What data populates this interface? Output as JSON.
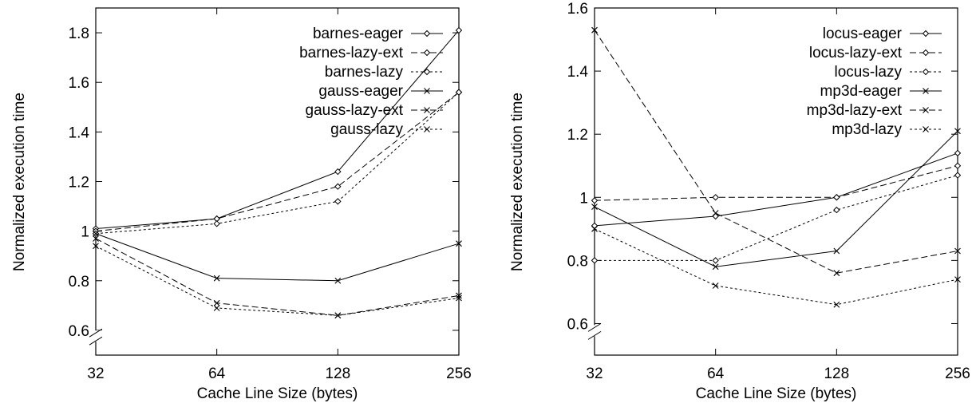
{
  "figure": {
    "background": "#ffffff"
  },
  "chart_data": [
    {
      "type": "line",
      "xlabel": "Cache Line Size (bytes)",
      "ylabel": "Normalized execution time",
      "x_scale": "log2",
      "categories": [
        "32",
        "64",
        "128",
        "256"
      ],
      "x": [
        32,
        64,
        128,
        256
      ],
      "xlim": [
        32,
        256
      ],
      "ylim": [
        0.5,
        1.9
      ],
      "yticks": [
        "0.6",
        "0.8",
        "1",
        "1.2",
        "1.4",
        "1.6",
        "1.8"
      ],
      "ytick_values": [
        0.6,
        0.8,
        1.0,
        1.2,
        1.4,
        1.6,
        1.8
      ],
      "axis_break": "y-axis near 0.6",
      "grid": false,
      "legend_position": "top-right",
      "series": [
        {
          "name": "barnes-eager",
          "values": [
            1.01,
            1.05,
            1.24,
            1.81
          ],
          "marker": "diamond",
          "dash": "solid",
          "color": "#000000"
        },
        {
          "name": "barnes-lazy-ext",
          "values": [
            1.0,
            1.05,
            1.18,
            1.56
          ],
          "marker": "diamond",
          "dash": "dashed",
          "color": "#000000"
        },
        {
          "name": "barnes-lazy",
          "values": [
            0.99,
            1.03,
            1.12,
            1.56
          ],
          "marker": "diamond",
          "dash": "dotted",
          "color": "#000000"
        },
        {
          "name": "gauss-eager",
          "values": [
            0.99,
            0.81,
            0.8,
            0.95
          ],
          "marker": "cross",
          "dash": "solid",
          "color": "#000000"
        },
        {
          "name": "gauss-lazy-ext",
          "values": [
            0.97,
            0.71,
            0.66,
            0.74
          ],
          "marker": "cross",
          "dash": "dashed",
          "color": "#000000"
        },
        {
          "name": "gauss-lazy",
          "values": [
            0.94,
            0.69,
            0.66,
            0.73
          ],
          "marker": "cross",
          "dash": "dotted",
          "color": "#000000"
        }
      ]
    },
    {
      "type": "line",
      "xlabel": "Cache Line Size (bytes)",
      "ylabel": "Normalized execution time",
      "x_scale": "log2",
      "categories": [
        "32",
        "64",
        "128",
        "256"
      ],
      "x": [
        32,
        64,
        128,
        256
      ],
      "xlim": [
        32,
        256
      ],
      "ylim": [
        0.5,
        1.6
      ],
      "yticks": [
        "0.6",
        "0.8",
        "1",
        "1.2",
        "1.4",
        "1.6"
      ],
      "ytick_values": [
        0.6,
        0.8,
        1.0,
        1.2,
        1.4,
        1.6
      ],
      "axis_break": "y-axis near 0.6",
      "grid": false,
      "legend_position": "top-right",
      "series": [
        {
          "name": "locus-eager",
          "values": [
            0.91,
            0.94,
            1.0,
            1.14
          ],
          "marker": "diamond",
          "dash": "solid",
          "color": "#000000"
        },
        {
          "name": "locus-lazy-ext",
          "values": [
            0.99,
            1.0,
            1.0,
            1.1
          ],
          "marker": "diamond",
          "dash": "dashed",
          "color": "#000000"
        },
        {
          "name": "locus-lazy",
          "values": [
            0.8,
            0.8,
            0.96,
            1.07
          ],
          "marker": "diamond",
          "dash": "dotted",
          "color": "#000000"
        },
        {
          "name": "mp3d-eager",
          "values": [
            0.97,
            0.78,
            0.83,
            1.21
          ],
          "marker": "cross",
          "dash": "solid",
          "color": "#000000"
        },
        {
          "name": "mp3d-lazy-ext",
          "values": [
            1.53,
            0.95,
            0.76,
            0.83
          ],
          "marker": "cross",
          "dash": "dashed",
          "color": "#000000"
        },
        {
          "name": "mp3d-lazy",
          "values": [
            0.9,
            0.72,
            0.66,
            0.74
          ],
          "marker": "cross",
          "dash": "dotted",
          "color": "#000000"
        }
      ]
    }
  ]
}
